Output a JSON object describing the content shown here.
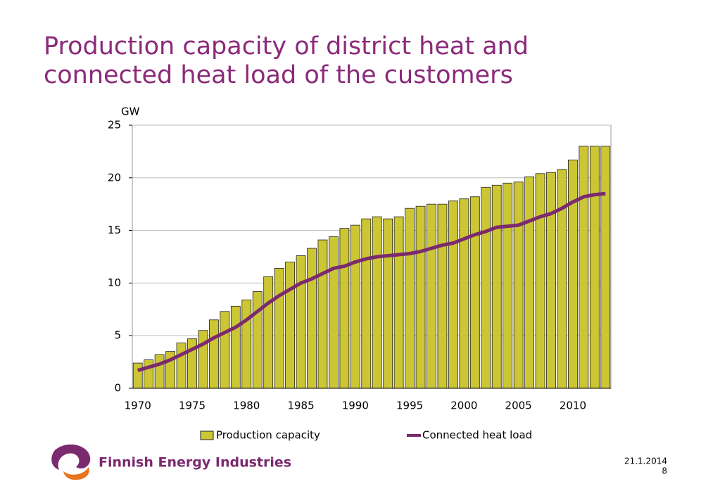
{
  "chart_data": {
    "type": "bar",
    "title": [
      "Production capacity of district heat and",
      "connected heat load of the customers"
    ],
    "y_label": "GW",
    "categories": [
      "1970",
      null,
      null,
      null,
      null,
      "1975",
      null,
      null,
      null,
      null,
      "1980",
      null,
      null,
      null,
      null,
      "1985",
      null,
      null,
      null,
      null,
      "1990",
      null,
      null,
      null,
      null,
      "1995",
      null,
      null,
      null,
      null,
      "2000",
      null,
      null,
      null,
      null,
      "2005",
      null,
      null,
      null,
      null,
      "2010",
      null,
      null,
      null
    ],
    "series": [
      {
        "name": "Production capacity",
        "type": "bar",
        "color": "#cdc634",
        "values": [
          2.4,
          2.7,
          3.2,
          3.5,
          4.3,
          4.7,
          5.5,
          6.5,
          7.3,
          7.8,
          8.4,
          9.2,
          10.6,
          11.4,
          12.0,
          12.6,
          13.3,
          14.1,
          14.4,
          15.2,
          15.5,
          16.1,
          16.3,
          16.1,
          16.3,
          17.1,
          17.3,
          17.5,
          17.5,
          17.8,
          18.0,
          18.2,
          19.1,
          19.3,
          19.5,
          19.6,
          20.1,
          20.4,
          20.5,
          20.8,
          21.7,
          23.0,
          23.0,
          23.0
        ]
      },
      {
        "name": "Connected heat load",
        "type": "line",
        "color": "#7b2a6e",
        "values": [
          1.7,
          2.0,
          2.3,
          2.7,
          3.2,
          3.7,
          4.2,
          4.8,
          5.3,
          5.8,
          6.5,
          7.3,
          8.1,
          8.8,
          9.4,
          10.0,
          10.4,
          10.9,
          11.4,
          11.6,
          12.0,
          12.3,
          12.5,
          12.6,
          12.7,
          12.8,
          13.0,
          13.3,
          13.6,
          13.8,
          14.2,
          14.6,
          14.9,
          15.3,
          15.4,
          15.5,
          15.9,
          16.3,
          16.6,
          17.1,
          17.7,
          18.2,
          18.4,
          18.5
        ]
      }
    ],
    "ylim": [
      0,
      25
    ],
    "yticks": [
      0,
      5,
      10,
      15,
      20,
      25
    ],
    "grid": true,
    "legend": "bottom"
  },
  "footer": {
    "logo_text": "Finnish Energy Industries",
    "date": "21.1.2014",
    "page": "8"
  }
}
